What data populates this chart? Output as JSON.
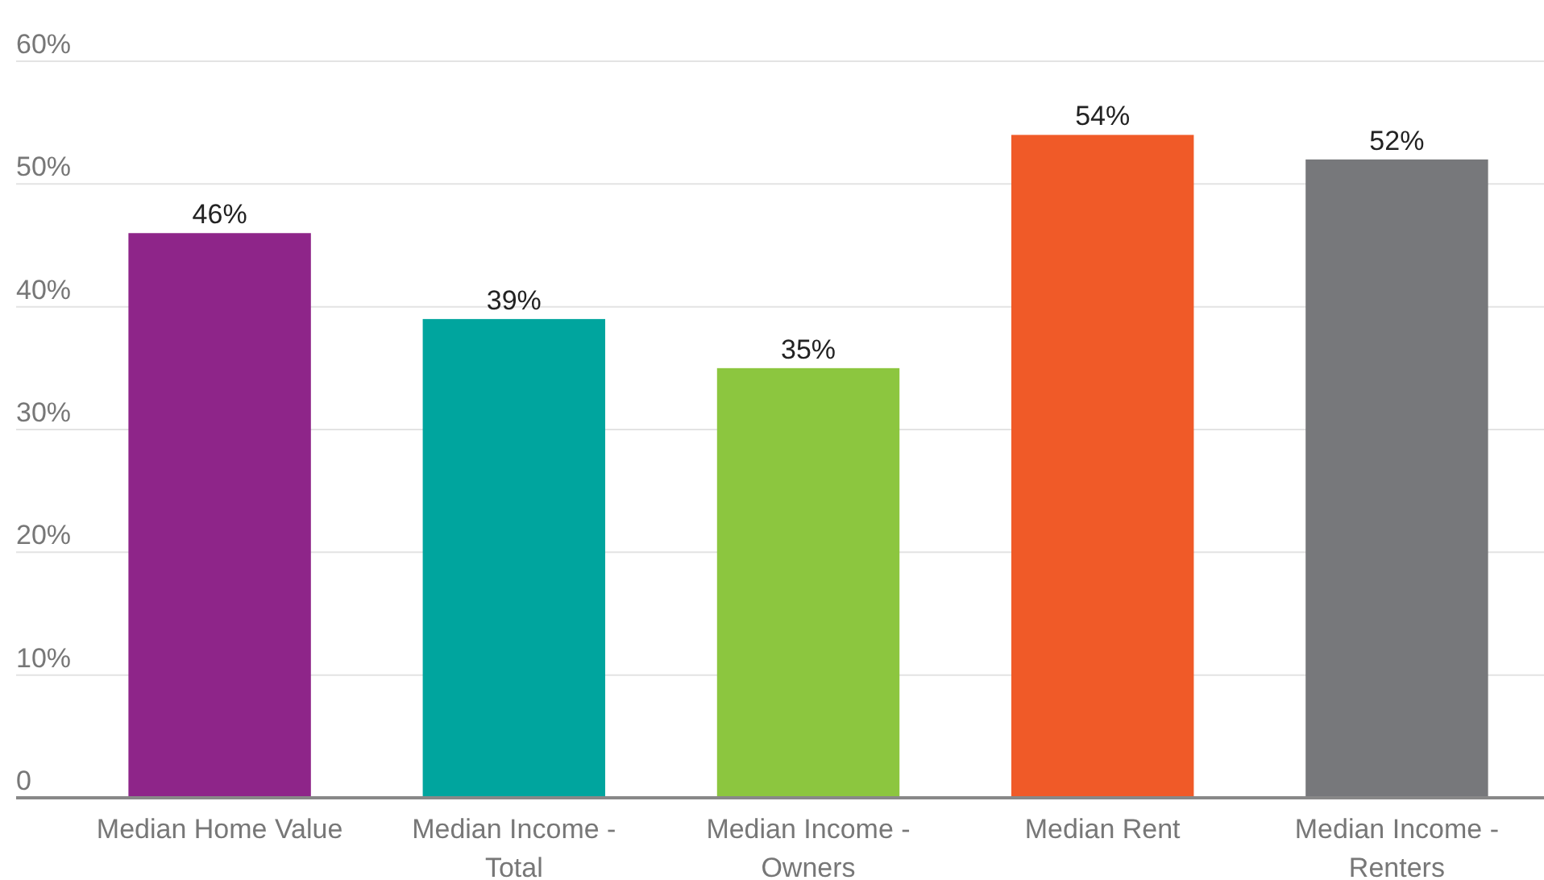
{
  "chart_data": {
    "type": "bar",
    "categories": [
      "Median Home Value",
      "Median Income - Total",
      "Median Income - Owners",
      "Median Rent",
      "Median Income - Renters"
    ],
    "values": [
      46,
      39,
      35,
      54,
      52
    ],
    "colors": [
      "#8e2589",
      "#00a59e",
      "#8cc63f",
      "#f05a28",
      "#77787b"
    ],
    "value_labels": [
      "46%",
      "39%",
      "35%",
      "54%",
      "52%"
    ],
    "ylim": [
      0,
      60
    ],
    "yticks": [
      0,
      {
        "value": 10,
        "label": "10%"
      },
      {
        "value": 20,
        "label": "20%"
      },
      {
        "value": 30,
        "label": "30%"
      },
      {
        "value": 40,
        "label": "40%"
      },
      {
        "value": 50,
        "label": "50%"
      },
      {
        "value": 60,
        "label": "60%"
      }
    ],
    "grid": "y"
  }
}
